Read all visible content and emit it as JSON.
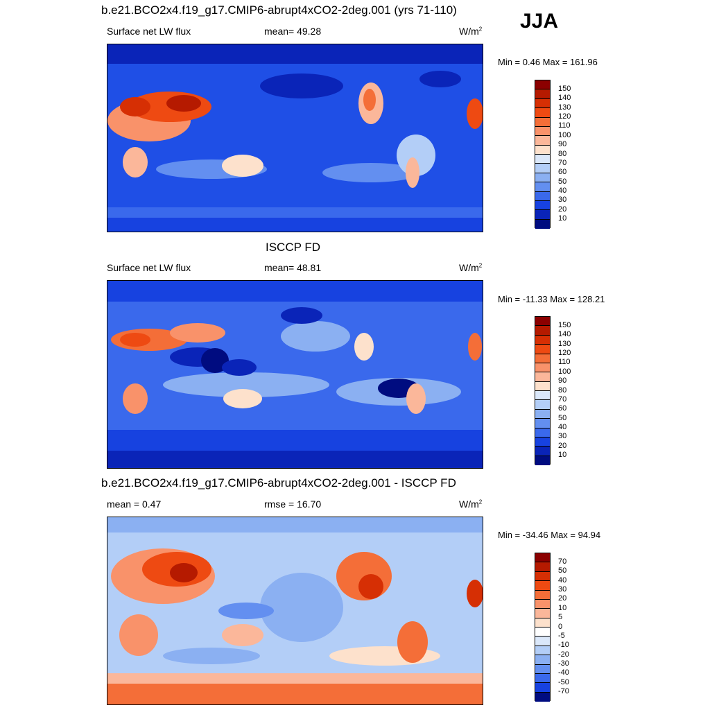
{
  "season": "JJA",
  "panels": [
    {
      "title": "b.e21.BCO2x4.f19_g17.CMIP6-abrupt4xCO2-2deg.001 (yrs 71-110)",
      "left_label": "Surface net LW flux",
      "center_label": "mean=  49.28",
      "units": "W/m",
      "units_sup": "2",
      "minmax": "Min =   0.46 Max = 161.96",
      "colorbar": {
        "labels": [
          "150",
          "140",
          "130",
          "120",
          "110",
          "100",
          "90",
          "80",
          "70",
          "60",
          "50",
          "40",
          "30",
          "20",
          "10"
        ],
        "colors": [
          "#8b0000",
          "#b51a00",
          "#d62f04",
          "#ee4a12",
          "#f46e38",
          "#f9926a",
          "#fbb79a",
          "#fde1cc",
          "#dbe8fa",
          "#b3cef7",
          "#8bb0f2",
          "#638ff0",
          "#3a69ec",
          "#1742e0",
          "#0a24b8",
          "#000c80"
        ]
      }
    },
    {
      "title": "ISCCP FD",
      "left_label": "Surface net LW flux",
      "center_label": "mean=  48.81",
      "units": "W/m",
      "units_sup": "2",
      "minmax": "Min = -11.33 Max = 128.21",
      "colorbar": {
        "labels": [
          "150",
          "140",
          "130",
          "120",
          "110",
          "100",
          "90",
          "80",
          "70",
          "60",
          "50",
          "40",
          "30",
          "20",
          "10"
        ],
        "colors": [
          "#8b0000",
          "#b51a00",
          "#d62f04",
          "#ee4a12",
          "#f46e38",
          "#f9926a",
          "#fbb79a",
          "#fde1cc",
          "#dbe8fa",
          "#b3cef7",
          "#8bb0f2",
          "#638ff0",
          "#3a69ec",
          "#1742e0",
          "#0a24b8",
          "#000c80"
        ]
      }
    },
    {
      "title": "b.e21.BCO2x4.f19_g17.CMIP6-abrupt4xCO2-2deg.001 - ISCCP FD",
      "left_label": "mean =   0.47",
      "center_label": "rmse =  16.70",
      "units": "W/m",
      "units_sup": "2",
      "minmax": "Min = -34.46 Max =  94.94",
      "colorbar": {
        "labels": [
          "70",
          "50",
          "40",
          "30",
          "20",
          "10",
          "5",
          "0",
          "-5",
          "-10",
          "-20",
          "-30",
          "-40",
          "-50",
          "-70"
        ],
        "colors": [
          "#8b0000",
          "#b51a00",
          "#d62f04",
          "#ee4a12",
          "#f46e38",
          "#f9926a",
          "#fbb79a",
          "#fde1cc",
          "#ffffff",
          "#dbe8fa",
          "#b3cef7",
          "#8bb0f2",
          "#638ff0",
          "#3a69ec",
          "#1742e0",
          "#000c80"
        ]
      }
    }
  ]
}
